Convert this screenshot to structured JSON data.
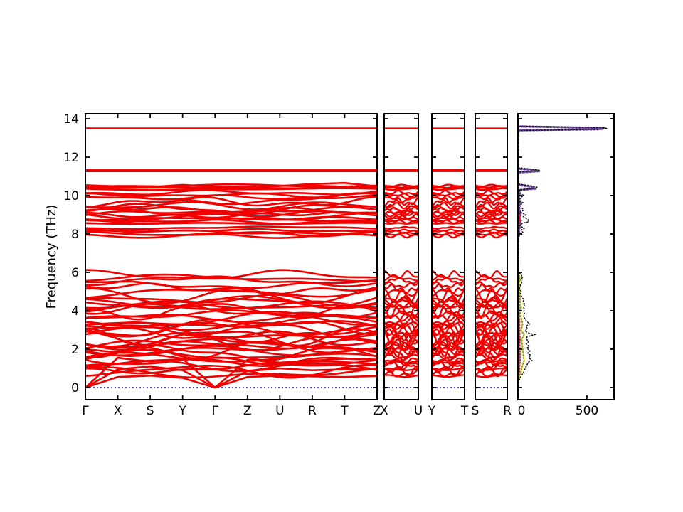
{
  "chart_data": {
    "type": "line",
    "title": "",
    "ylabel": "Frequency (THz)",
    "ylim": [
      -0.65,
      14.3
    ],
    "yticks": [
      0,
      2,
      4,
      6,
      8,
      10,
      12,
      14
    ],
    "ytick_labels": [
      "0",
      "2",
      "4",
      "6",
      "8",
      "10",
      "12",
      "14"
    ],
    "band_color": "#f20000",
    "axis_color": "#000000",
    "zero_line": {
      "y": 0,
      "color": "#2323cc",
      "style": "dotted"
    },
    "panels": [
      {
        "name": "main-band-panel",
        "kpoints": [
          "Γ",
          "X",
          "S",
          "Y",
          "Γ",
          "Z",
          "U",
          "R",
          "T",
          "Z"
        ]
      },
      {
        "name": "band-panel-XU",
        "kpoints": [
          "X",
          "U"
        ]
      },
      {
        "name": "band-panel-YT",
        "kpoints": [
          "Y",
          "T"
        ]
      },
      {
        "name": "band-panel-SR",
        "kpoints": [
          "S",
          "R"
        ]
      }
    ],
    "bands": {
      "flat": [
        13.5,
        11.33,
        11.27
      ],
      "explicit": [
        {
          "nodes": [
            0,
            1.55,
            1.35,
            1.5,
            0,
            1.45,
            1.3,
            1.4,
            1.5,
            1.45
          ],
          "small": 1.35
        },
        {
          "nodes": [
            0,
            0.95,
            1.1,
            0.9,
            0,
            0.85,
            1.0,
            0.9,
            0.95,
            1.0
          ],
          "small": 0.95
        },
        {
          "nodes": [
            0,
            0.55,
            0.62,
            0.5,
            0,
            0.55,
            0.62,
            0.58,
            0.55,
            0.6
          ],
          "small": 0.6
        },
        {
          "nodes": [
            10.45,
            10.47,
            10.44,
            10.56,
            10.45,
            10.44,
            10.5,
            10.6,
            10.66,
            10.48
          ],
          "small": 10.45
        }
      ],
      "clusters": [
        {
          "f0": 10.33,
          "f1": 10.52,
          "n": 4,
          "amp": 0.04
        },
        {
          "f0": 9.9,
          "f1": 10.15,
          "n": 3,
          "amp": 0.1
        },
        {
          "f0": 9.3,
          "f1": 9.85,
          "n": 4,
          "amp": 0.2
        },
        {
          "f0": 8.9,
          "f1": 9.25,
          "n": 5,
          "amp": 0.14
        },
        {
          "f0": 8.55,
          "f1": 8.8,
          "n": 4,
          "amp": 0.06
        },
        {
          "f0": 8.18,
          "f1": 8.32,
          "n": 2,
          "amp": 0.05
        },
        {
          "f0": 7.9,
          "f1": 8.1,
          "n": 3,
          "amp": 0.07
        },
        {
          "f0": 5.38,
          "f1": 5.85,
          "n": 4,
          "amp": 0.15
        },
        {
          "f0": 4.4,
          "f1": 5.15,
          "n": 5,
          "amp": 0.24
        },
        {
          "f0": 3.1,
          "f1": 4.45,
          "n": 11,
          "amp": 0.24
        },
        {
          "f0": 1.9,
          "f1": 3.1,
          "n": 12,
          "amp": 0.27
        },
        {
          "f0": 0.75,
          "f1": 1.95,
          "n": 10,
          "amp": 0.22
        }
      ]
    },
    "dos": {
      "xtick_labels": [
        "0",
        "500"
      ],
      "xticks": [
        0,
        500
      ],
      "xlim": [
        0,
        696
      ],
      "curves": [
        {
          "name": "partial-dos-purple",
          "color": "#6a3fa0",
          "width": 3,
          "points": [
            [
              13.6,
              2
            ],
            [
              13.52,
              600
            ],
            [
              13.5,
              628
            ],
            [
              13.45,
              580
            ],
            [
              13.4,
              2
            ],
            [
              12.0,
              0
            ],
            [
              11.4,
              2
            ],
            [
              11.32,
              140
            ],
            [
              11.27,
              146
            ],
            [
              11.2,
              3
            ],
            [
              10.55,
              3
            ],
            [
              10.44,
              118
            ],
            [
              10.36,
              124
            ],
            [
              10.28,
              4
            ],
            [
              10.0,
              14
            ],
            [
              9.9,
              6
            ],
            [
              9.6,
              16
            ],
            [
              9.5,
              5
            ],
            [
              9.25,
              12
            ],
            [
              9.0,
              20
            ],
            [
              8.85,
              10
            ],
            [
              8.7,
              22
            ],
            [
              8.6,
              14
            ],
            [
              8.3,
              12
            ],
            [
              8.2,
              6
            ],
            [
              8.0,
              10
            ],
            [
              7.9,
              2
            ],
            [
              7.0,
              0
            ]
          ]
        },
        {
          "name": "partial-dos-olive",
          "color": "#a8a800",
          "width": 2.2,
          "points": [
            [
              6.0,
              1
            ],
            [
              5.8,
              10
            ],
            [
              5.6,
              14
            ],
            [
              5.4,
              8
            ],
            [
              5.1,
              10
            ],
            [
              4.8,
              14
            ],
            [
              4.5,
              18
            ],
            [
              4.2,
              22
            ],
            [
              3.9,
              18
            ],
            [
              3.6,
              24
            ],
            [
              3.3,
              34
            ],
            [
              3.0,
              22
            ],
            [
              2.75,
              44
            ],
            [
              2.5,
              28
            ],
            [
              2.2,
              32
            ],
            [
              1.9,
              36
            ],
            [
              1.6,
              40
            ],
            [
              1.4,
              44
            ],
            [
              1.15,
              32
            ],
            [
              0.9,
              24
            ],
            [
              0.7,
              16
            ],
            [
              0.5,
              8
            ],
            [
              0.3,
              3
            ]
          ]
        },
        {
          "name": "partial-dos-green",
          "color": "#22a044",
          "width": 1.8,
          "points": [
            [
              5.7,
              7
            ],
            [
              5.3,
              5
            ],
            [
              4.9,
              8
            ],
            [
              4.5,
              11
            ],
            [
              4.1,
              9
            ],
            [
              3.7,
              13
            ],
            [
              3.3,
              11
            ],
            [
              2.9,
              14
            ],
            [
              2.5,
              16
            ],
            [
              2.1,
              13
            ],
            [
              1.7,
              18
            ],
            [
              1.4,
              15
            ],
            [
              1.1,
              11
            ],
            [
              0.8,
              8
            ],
            [
              0.5,
              4
            ]
          ]
        },
        {
          "name": "partial-dos-red",
          "color": "#cc2222",
          "width": 1.8,
          "points": [
            [
              9.05,
              10
            ],
            [
              8.9,
              14
            ],
            [
              8.7,
              12
            ],
            [
              8.55,
              8
            ],
            [
              8.25,
              6
            ],
            [
              8.0,
              5
            ],
            [
              7.8,
              1
            ],
            [
              5.8,
              4
            ],
            [
              5.5,
              6
            ],
            [
              5.0,
              5
            ],
            [
              4.6,
              8
            ],
            [
              4.2,
              7
            ],
            [
              3.8,
              9
            ],
            [
              3.4,
              12
            ],
            [
              3.0,
              10
            ],
            [
              2.6,
              14
            ],
            [
              2.2,
              11
            ],
            [
              1.8,
              10
            ],
            [
              1.4,
              16
            ],
            [
              1.0,
              12
            ],
            [
              0.7,
              8
            ],
            [
              0.4,
              4
            ]
          ]
        },
        {
          "name": "partial-dos-magenta",
          "color": "#cc44aa",
          "width": 1.8,
          "points": [
            [
              4.75,
              7
            ],
            [
              4.4,
              5
            ],
            [
              3.9,
              6
            ],
            [
              2.9,
              8
            ],
            [
              2.2,
              7
            ],
            [
              1.5,
              9
            ],
            [
              1.0,
              6
            ],
            [
              0.6,
              4
            ]
          ]
        },
        {
          "name": "total-dos",
          "color": "#151515",
          "width": 1.5,
          "points": [
            [
              14.25,
              0
            ],
            [
              13.62,
              2
            ],
            [
              13.54,
              615
            ],
            [
              13.5,
              648
            ],
            [
              13.46,
              600
            ],
            [
              13.38,
              2
            ],
            [
              12.5,
              1
            ],
            [
              11.45,
              3
            ],
            [
              11.34,
              148
            ],
            [
              11.3,
              158
            ],
            [
              11.24,
              6
            ],
            [
              11.0,
              2
            ],
            [
              10.6,
              6
            ],
            [
              10.47,
              132
            ],
            [
              10.4,
              142
            ],
            [
              10.3,
              10
            ],
            [
              10.12,
              20
            ],
            [
              10.0,
              42
            ],
            [
              9.9,
              18
            ],
            [
              9.72,
              12
            ],
            [
              9.62,
              38
            ],
            [
              9.5,
              14
            ],
            [
              9.35,
              30
            ],
            [
              9.25,
              42
            ],
            [
              9.12,
              22
            ],
            [
              9.0,
              58
            ],
            [
              8.9,
              40
            ],
            [
              8.76,
              72
            ],
            [
              8.64,
              78
            ],
            [
              8.55,
              30
            ],
            [
              8.42,
              12
            ],
            [
              8.3,
              46
            ],
            [
              8.2,
              24
            ],
            [
              8.08,
              36
            ],
            [
              7.97,
              28
            ],
            [
              7.88,
              6
            ],
            [
              7.5,
              1
            ],
            [
              6.5,
              1
            ],
            [
              6.05,
              3
            ],
            [
              5.88,
              22
            ],
            [
              5.75,
              34
            ],
            [
              5.62,
              20
            ],
            [
              5.5,
              30
            ],
            [
              5.35,
              18
            ],
            [
              5.15,
              12
            ],
            [
              5.0,
              24
            ],
            [
              4.85,
              18
            ],
            [
              4.7,
              30
            ],
            [
              4.58,
              42
            ],
            [
              4.45,
              36
            ],
            [
              4.32,
              52
            ],
            [
              4.2,
              38
            ],
            [
              4.08,
              48
            ],
            [
              3.95,
              40
            ],
            [
              3.82,
              50
            ],
            [
              3.7,
              38
            ],
            [
              3.58,
              52
            ],
            [
              3.45,
              62
            ],
            [
              3.32,
              88
            ],
            [
              3.2,
              58
            ],
            [
              3.08,
              68
            ],
            [
              2.95,
              52
            ],
            [
              2.86,
              70
            ],
            [
              2.76,
              122
            ],
            [
              2.65,
              66
            ],
            [
              2.52,
              62
            ],
            [
              2.4,
              78
            ],
            [
              2.28,
              60
            ],
            [
              2.16,
              82
            ],
            [
              2.05,
              64
            ],
            [
              1.92,
              88
            ],
            [
              1.8,
              70
            ],
            [
              1.68,
              92
            ],
            [
              1.55,
              78
            ],
            [
              1.42,
              102
            ],
            [
              1.3,
              72
            ],
            [
              1.18,
              66
            ],
            [
              1.05,
              56
            ],
            [
              0.92,
              48
            ],
            [
              0.8,
              42
            ],
            [
              0.65,
              28
            ],
            [
              0.5,
              16
            ],
            [
              0.35,
              8
            ],
            [
              0.2,
              3
            ],
            [
              0.05,
              1
            ]
          ]
        }
      ]
    }
  }
}
